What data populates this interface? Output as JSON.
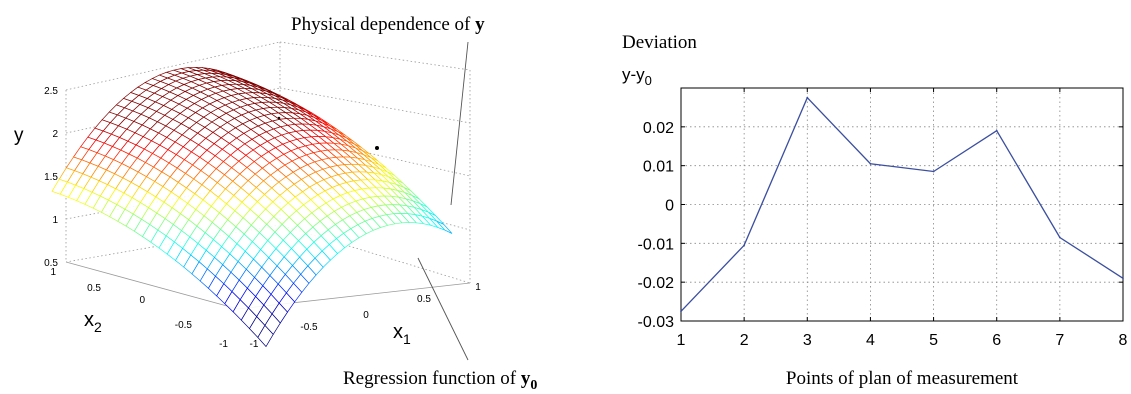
{
  "chart_data": [
    {
      "type": "surface",
      "annotations": {
        "top_prefix": "Physical dependence of ",
        "top_bold": "y",
        "bottom_prefix": "Regression function of ",
        "bottom_bold": "y",
        "bottom_sub": "0"
      },
      "zlabel": "y",
      "xlabel_main": "x",
      "xlabel_sub": "1",
      "ylabel_main": "x",
      "ylabel_sub": "2",
      "z_ticks": [
        "2.5",
        "2",
        "1.5",
        "1",
        "0.5"
      ],
      "x1_ticks": [
        "-1",
        "-0.5",
        "0",
        "0.5",
        "1"
      ],
      "x2_ticks": [
        "1",
        "0.5",
        "0",
        "-0.5",
        "-1"
      ],
      "zlim": [
        0.5,
        2.5
      ],
      "grid": true,
      "colormap": "jet"
    },
    {
      "type": "line",
      "title": "Deviation",
      "ylabel_main": "y-y",
      "ylabel_sub": "0",
      "xlabel": "Points of plan of measurement",
      "x": [
        1,
        2,
        3,
        4,
        5,
        6,
        7,
        8
      ],
      "y": [
        -0.0275,
        -0.0105,
        0.0275,
        0.0105,
        0.0085,
        0.019,
        -0.0085,
        -0.019
      ],
      "xlim": [
        1,
        8
      ],
      "ylim": [
        -0.03,
        0.03
      ],
      "x_ticks": [
        "1",
        "2",
        "3",
        "4",
        "5",
        "6",
        "7",
        "8"
      ],
      "y_ticks": [
        "0.02",
        "0.01",
        "0",
        "-0.01",
        "-0.02",
        "-0.03"
      ],
      "grid": true,
      "line_color": "#3b4fa0"
    }
  ]
}
